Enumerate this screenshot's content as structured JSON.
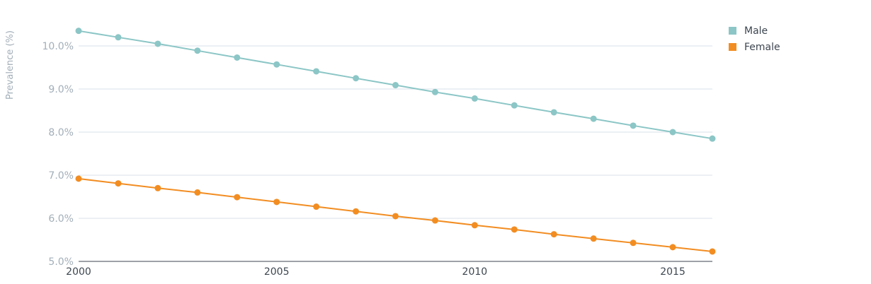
{
  "chart_data": {
    "type": "line",
    "title": "",
    "xlabel": "",
    "ylabel": "Prevalence (%)",
    "x": [
      2000,
      2001,
      2002,
      2003,
      2004,
      2005,
      2006,
      2007,
      2008,
      2009,
      2010,
      2011,
      2012,
      2013,
      2014,
      2015,
      2016
    ],
    "xticks": [
      "2000",
      "2005",
      "2010",
      "2015"
    ],
    "yticks": [
      "5.0%",
      "6.0%",
      "7.0%",
      "8.0%",
      "9.0%",
      "10.0%"
    ],
    "ylim": [
      5.0,
      10.0
    ],
    "grid": true,
    "legend_position": "top-right",
    "series": [
      {
        "name": "Male",
        "color": "#8cc6c6",
        "values": [
          10.35,
          10.2,
          10.05,
          9.89,
          9.73,
          9.57,
          9.41,
          9.25,
          9.09,
          8.93,
          8.78,
          8.62,
          8.46,
          8.31,
          8.15,
          8.0,
          7.85
        ]
      },
      {
        "name": "Female",
        "color": "#f28d22",
        "values": [
          6.92,
          6.81,
          6.7,
          6.6,
          6.49,
          6.38,
          6.27,
          6.16,
          6.05,
          5.95,
          5.84,
          5.74,
          5.63,
          5.53,
          5.43,
          5.33,
          5.23
        ]
      }
    ]
  }
}
